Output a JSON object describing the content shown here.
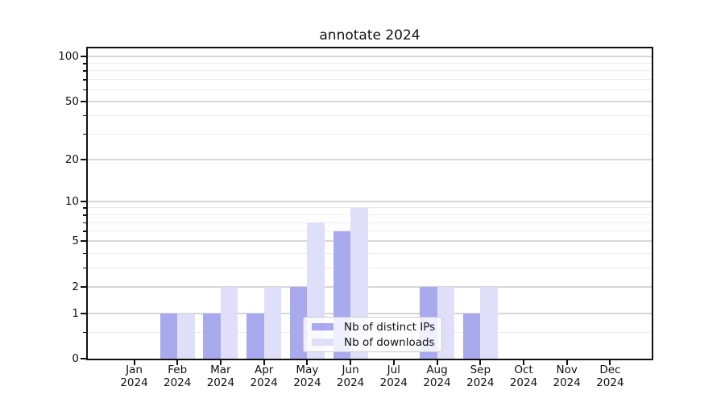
{
  "chart_data": {
    "type": "bar",
    "title": "annotate 2024",
    "categories": [
      "Jan",
      "Feb",
      "Mar",
      "Apr",
      "May",
      "Jun",
      "Jul",
      "Aug",
      "Sep",
      "Oct",
      "Nov",
      "Dec"
    ],
    "x_tick_year": "2024",
    "series": [
      {
        "name": "Nb of distinct IPs",
        "color": "#a9a9ee",
        "values": [
          0,
          1,
          1,
          1,
          2,
          6,
          0,
          2,
          1,
          0,
          0,
          0
        ]
      },
      {
        "name": "Nb of downloads",
        "color": "#dfdff9",
        "values": [
          0,
          1,
          2,
          2,
          7,
          9,
          0,
          2,
          2,
          0,
          0,
          0
        ]
      }
    ],
    "yscale": "log1p",
    "ylim": [
      0,
      115
    ],
    "y_major_ticks": [
      0,
      1,
      2,
      5,
      10,
      20,
      50,
      100
    ],
    "y_minor_ticks": [
      0.5,
      3,
      4,
      6,
      7,
      8,
      9,
      30,
      40,
      60,
      70,
      80,
      90
    ],
    "grid": "horizontal-only",
    "legend_position": "lower-center"
  },
  "colors": {
    "background": "#ffffff",
    "spine": "#111111",
    "major_grid": "#d6d6d6",
    "minor_grid": "#ededed",
    "text": "#111111",
    "legend_border": "#cccccc"
  }
}
